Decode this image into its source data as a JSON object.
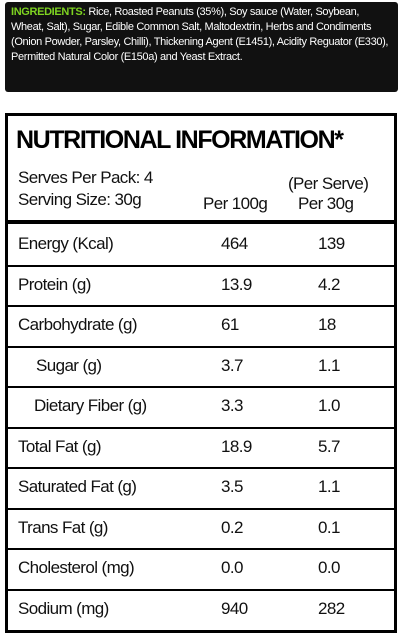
{
  "ingredients": {
    "label": "INGREDIENTS:",
    "text": "Rice, Roasted Peanuts (35%), Soy sauce (Water, Soybean, Wheat, Salt), Sugar, Edible Common Salt, Maltodextrin, Herbs and Condiments (Onion Powder, Parsley, Chilli), Thickening Agent (E1451), Acidity Reguator (E330), Permitted Natural Color (E150a) and Yeast Extract."
  },
  "nutrition": {
    "title": "NUTRITIONAL INFORMATION*",
    "serves": "Serves Per Pack: 4",
    "serving_size": "Serving Size: 30g",
    "col1": "Per 100g",
    "col2_top": "(Per Serve)",
    "col2": "Per 30g",
    "rows": [
      [
        "Energy (Kcal)",
        "464",
        "139"
      ],
      [
        "Protein (g)",
        "13.9",
        "4.2"
      ],
      [
        "Carbohydrate (g)",
        "61",
        "18"
      ],
      [
        "Sugar (g)",
        "3.7",
        "1.1"
      ],
      [
        "Dietary Fiber (g)",
        "3.3",
        "1.0"
      ],
      [
        "Total Fat (g)",
        "18.9",
        "5.7"
      ],
      [
        "Saturated Fat (g)",
        "3.5",
        "1.1"
      ],
      [
        "Trans Fat (g)",
        "0.2",
        "0.1"
      ],
      [
        "Cholesterol (mg)",
        "0.0",
        "0.0"
      ],
      [
        "Sodium (mg)",
        "940",
        "282"
      ]
    ]
  }
}
